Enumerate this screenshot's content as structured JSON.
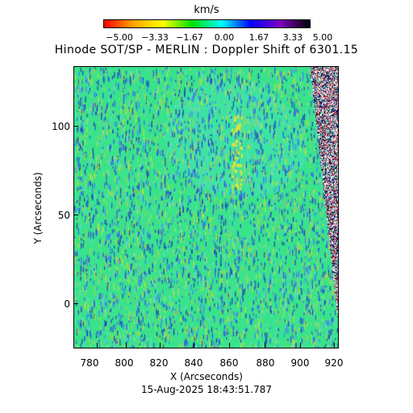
{
  "colorbar": {
    "units": "km/s",
    "tick_labels": [
      "−5.00",
      "−3.33",
      "−1.67",
      "0.00",
      "1.67",
      "3.33",
      "5.00"
    ],
    "range": [
      -5,
      5
    ],
    "colors": [
      "#ff0000",
      "#ffa500",
      "#ffff00",
      "#00e000",
      "#00ffff",
      "#0000ff",
      "#8000c0",
      "#000000"
    ]
  },
  "title": "Hinode SOT/SP - MERLIN : Doppler Shift of 6301.15",
  "axes": {
    "xlabel": "X (Arcseconds)",
    "ylabel": "Y (Arcseconds)",
    "x_ticks": [
      "780",
      "800",
      "820",
      "840",
      "860",
      "880",
      "900",
      "920"
    ],
    "y_ticks": [
      "0",
      "50",
      "100"
    ],
    "x_range": [
      768,
      922
    ],
    "y_range": [
      -26,
      133
    ]
  },
  "timestamp": "15-Aug-2025 18:43:51.787",
  "image": {
    "background_color": "#39e38c",
    "noise_colors": [
      "#3c7dff",
      "#2c4fe0",
      "#9bd94c",
      "#6fd6c9",
      "#c2e040",
      "#1f3cb5"
    ]
  }
}
